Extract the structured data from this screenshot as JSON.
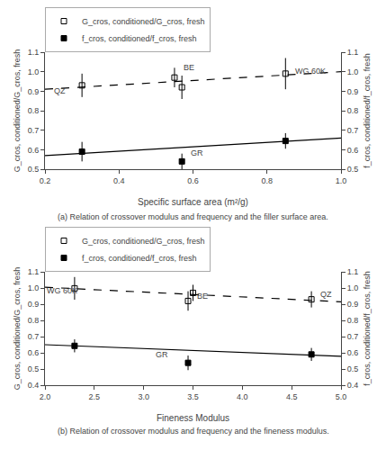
{
  "chart_data": [
    {
      "type": "scatter",
      "title": "(a) Relation of crossover modulus and frequency and the filler surface area.",
      "xlabel": "Specific surface area (m²/g)",
      "ylabel": "G_cros, conditioned/G_cros, fresh",
      "y2label": "f_cros, conditioned/f_cros, fresh",
      "xlim": [
        0.2,
        1.0
      ],
      "xticks": [
        0.2,
        0.4,
        0.6,
        0.8,
        {
          "value": 1.0,
          "label": "1.0"
        }
      ],
      "ylim": [
        0.5,
        1.1
      ],
      "yticks": [
        0.5,
        0.6,
        0.7,
        0.8,
        0.9,
        {
          "value": 1.0,
          "label": "1.0"
        },
        1.1
      ],
      "y2lim": [
        0.5,
        1.1
      ],
      "y2ticks": [
        0.5,
        0.6,
        0.7,
        0.8,
        0.9,
        {
          "value": 1.0,
          "label": "1.0"
        },
        1.1
      ],
      "grid": false,
      "legend": "upper left",
      "series": [
        {
          "name": "G_cros, conditioned/G_cros, fresh",
          "color": "#000000",
          "marker": "square-open",
          "line_style": "dash",
          "x": [
            0.3,
            0.55,
            0.57,
            0.85
          ],
          "values": [
            0.93,
            0.97,
            0.92,
            0.99
          ],
          "errors": [
            0.06,
            0.05,
            0.06,
            0.08
          ],
          "trendline": {
            "x": [
              0.2,
              1.0
            ],
            "values": [
              0.91,
              1.0
            ]
          }
        },
        {
          "name": "f_cros, conditioned/f_cros, fresh",
          "color": "#000000",
          "marker": "square",
          "line_style": "solid",
          "x": [
            0.3,
            0.57,
            0.85
          ],
          "values": [
            0.59,
            0.54,
            0.645
          ],
          "errors": [
            0.05,
            0.04,
            0.04
          ],
          "trendline": {
            "x": [
              0.2,
              1.0
            ],
            "values": [
              0.57,
              0.66
            ]
          }
        }
      ],
      "annotations": [
        {
          "text": "QZ",
          "x": 0.22,
          "y": 0.87
        },
        {
          "text": "BE",
          "x": 0.57,
          "y": 0.99
        },
        {
          "text": "WG 60K",
          "x": 0.87,
          "y": 0.97
        },
        {
          "text": "GR",
          "x": 0.59,
          "y": 0.55
        }
      ]
    },
    {
      "type": "scatter",
      "title": "(b) Relation of crossover modulus and frequency and the fineness modulus.",
      "xlabel": "Fineness Modulus",
      "ylabel": "G_cros, conditioned/G_cros, fresh",
      "y2label": "f_cros, conditioned/f_cros, fresh",
      "xlim": [
        2.0,
        5.0
      ],
      "xticks": [
        {
          "value": 2.0,
          "label": "2.0"
        },
        2.5,
        {
          "value": 3.0,
          "label": "3.0"
        },
        3.5,
        {
          "value": 4.0,
          "label": "4.0"
        },
        4.5,
        {
          "value": 5.0,
          "label": "5.0"
        }
      ],
      "ylim": [
        0.4,
        1.1
      ],
      "yticks": [
        0.4,
        0.5,
        0.6,
        0.7,
        0.8,
        0.9,
        {
          "value": 1.0,
          "label": "1.0"
        },
        1.1
      ],
      "y2lim": [
        0.4,
        1.1
      ],
      "y2ticks": [
        0.4,
        0.5,
        0.6,
        0.7,
        0.8,
        0.9,
        {
          "value": 1.0,
          "label": "1.0"
        },
        1.1
      ],
      "grid": false,
      "legend": "upper left",
      "series": [
        {
          "name": "G_cros, conditioned/G_cros, fresh",
          "color": "#000000",
          "marker": "square-open",
          "line_style": "dash",
          "x": [
            2.3,
            3.45,
            3.5,
            4.7
          ],
          "values": [
            0.998,
            0.92,
            0.97,
            0.93
          ],
          "errors": [
            0.07,
            0.06,
            0.05,
            0.05
          ],
          "trendline": {
            "x": [
              2.0,
              5.0
            ],
            "values": [
              1.005,
              0.915
            ]
          }
        },
        {
          "name": "f_cros, conditioned/f_cros, fresh",
          "color": "#000000",
          "marker": "square",
          "line_style": "solid",
          "x": [
            2.3,
            3.45,
            4.7
          ],
          "values": [
            0.643,
            0.538,
            0.59
          ],
          "errors": [
            0.04,
            0.045,
            0.04
          ],
          "trendline": {
            "x": [
              2.0,
              5.0
            ],
            "values": [
              0.65,
              0.578
            ]
          }
        }
      ],
      "annotations": [
        {
          "text": "WG 60K",
          "x": 2.0,
          "y": 0.943
        },
        {
          "text": "BE",
          "x": 3.52,
          "y": 0.91
        },
        {
          "text": "QZ",
          "x": 4.77,
          "y": 0.92
        },
        {
          "text": "GR",
          "x": 3.1,
          "y": 0.548
        }
      ]
    }
  ]
}
